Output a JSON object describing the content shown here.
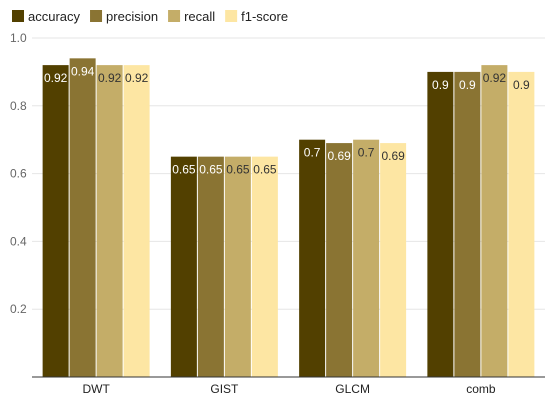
{
  "chart_data": {
    "type": "bar",
    "categories": [
      "DWT",
      "GIST",
      "GLCM",
      "comb"
    ],
    "series": [
      {
        "name": "accuracy",
        "color": "#524000",
        "values": [
          0.92,
          0.65,
          0.7,
          0.9
        ],
        "labels": [
          "0.92",
          "0.65",
          "0.7",
          "0.9"
        ]
      },
      {
        "name": "precision",
        "color": "#8a7433",
        "values": [
          0.94,
          0.65,
          0.69,
          0.9
        ],
        "labels": [
          "0.94",
          "0.65",
          "0.69",
          "0.9"
        ]
      },
      {
        "name": "recall",
        "color": "#c4ad68",
        "values": [
          0.92,
          0.65,
          0.7,
          0.92
        ],
        "labels": [
          "0.92",
          "0.65",
          "0.7",
          "0.92"
        ]
      },
      {
        "name": "f1-score",
        "color": "#fde6a3",
        "values": [
          0.92,
          0.65,
          0.69,
          0.9
        ],
        "labels": [
          "0.92",
          "0.65",
          "0.69",
          "0.9"
        ]
      }
    ],
    "yticks": [
      "0.2",
      "0.4",
      "0.6",
      "0.8",
      "1.0"
    ],
    "ylim": [
      0,
      1.0
    ],
    "grid": true,
    "legend": "top-left",
    "title": "",
    "xlabel": "",
    "ylabel": ""
  }
}
